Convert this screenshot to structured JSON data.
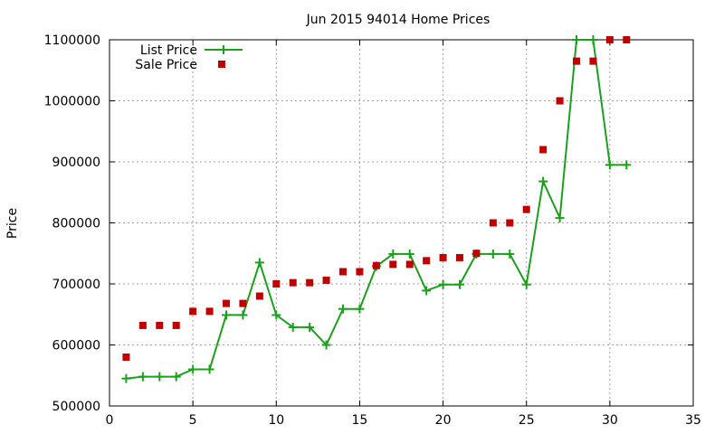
{
  "chart_data": {
    "type": "line",
    "title": "Jun 2015 94014 Home Prices",
    "xlabel": "",
    "ylabel": "Price",
    "xlim": [
      0,
      35
    ],
    "ylim": [
      500000,
      1100000
    ],
    "xticks": [
      0,
      5,
      10,
      15,
      20,
      25,
      30,
      35
    ],
    "yticks": [
      500000,
      600000,
      700000,
      800000,
      900000,
      1000000,
      1100000
    ],
    "grid": true,
    "legend": "top-left",
    "series": [
      {
        "name": "List Price",
        "style": "linespoints",
        "color": "#1aa01a",
        "x": [
          1,
          2,
          3,
          4,
          5,
          6,
          7,
          8,
          9,
          10,
          11,
          12,
          13,
          14,
          15,
          16,
          17,
          18,
          19,
          20,
          21,
          22,
          23,
          24,
          25,
          26,
          27,
          28,
          29,
          30,
          31
        ],
        "y": [
          545000,
          548000,
          548000,
          548000,
          560000,
          560000,
          649000,
          649000,
          735000,
          649000,
          629000,
          629000,
          600000,
          659000,
          659000,
          729000,
          749000,
          749000,
          689000,
          699000,
          699000,
          749000,
          749000,
          749000,
          699000,
          868000,
          808000,
          1100000,
          1100000,
          895000,
          895000
        ]
      },
      {
        "name": "Sale Price",
        "style": "points",
        "color": "#c00000",
        "x": [
          1,
          2,
          3,
          4,
          5,
          6,
          7,
          8,
          9,
          10,
          11,
          12,
          13,
          14,
          15,
          16,
          17,
          18,
          19,
          20,
          21,
          22,
          23,
          24,
          25,
          26,
          27,
          28,
          29,
          30,
          31
        ],
        "y": [
          580000,
          632000,
          632000,
          632000,
          655000,
          655000,
          668000,
          668000,
          680000,
          700000,
          702000,
          702000,
          706000,
          720000,
          720000,
          730000,
          732000,
          732000,
          738000,
          743000,
          743000,
          750000,
          800000,
          800000,
          822000,
          920000,
          1000000,
          1065000,
          1065000,
          1100000,
          1100000
        ]
      }
    ]
  }
}
